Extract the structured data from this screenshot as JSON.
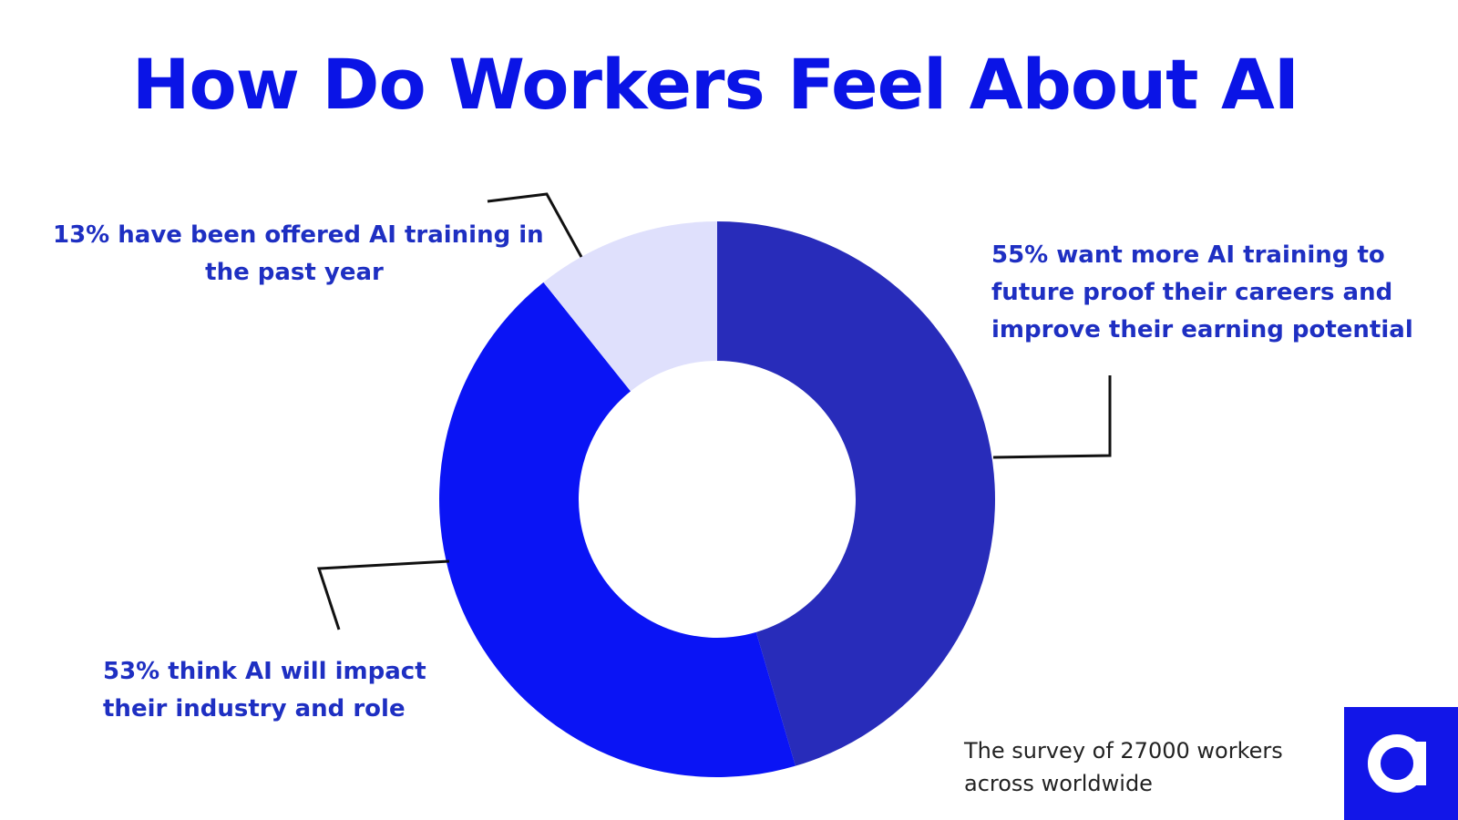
{
  "title": "How Do Workers Feel About AI",
  "callouts": {
    "c13": [
      "13% have been offered AI training in",
      "the past year"
    ],
    "c55": [
      "55% want more AI training to",
      "future proof their careers and",
      "improve their earning potential"
    ],
    "c53": [
      "53% think AI will impact",
      "their industry and role"
    ]
  },
  "footnote": [
    "The survey of 27000 workers",
    "across worldwide"
  ],
  "colors": {
    "title": "#0a14e6",
    "text": "#1e2fc2",
    "slice_55": "#282cba",
    "slice_53": "#0a14f5",
    "slice_13": "#dfe0fc",
    "logo": "#1216e8"
  },
  "logo_icon": "letter-a-logo-icon",
  "chart_data": {
    "type": "pie",
    "donut": true,
    "title": "How Do Workers Feel About AI",
    "slices": [
      {
        "label": "55% want more AI training to future proof their careers and improve their earning potential",
        "value": 55
      },
      {
        "label": "53% think AI will impact their industry and role",
        "value": 53
      },
      {
        "label": "13% have been offered AI training in the past year",
        "value": 13
      }
    ]
  }
}
